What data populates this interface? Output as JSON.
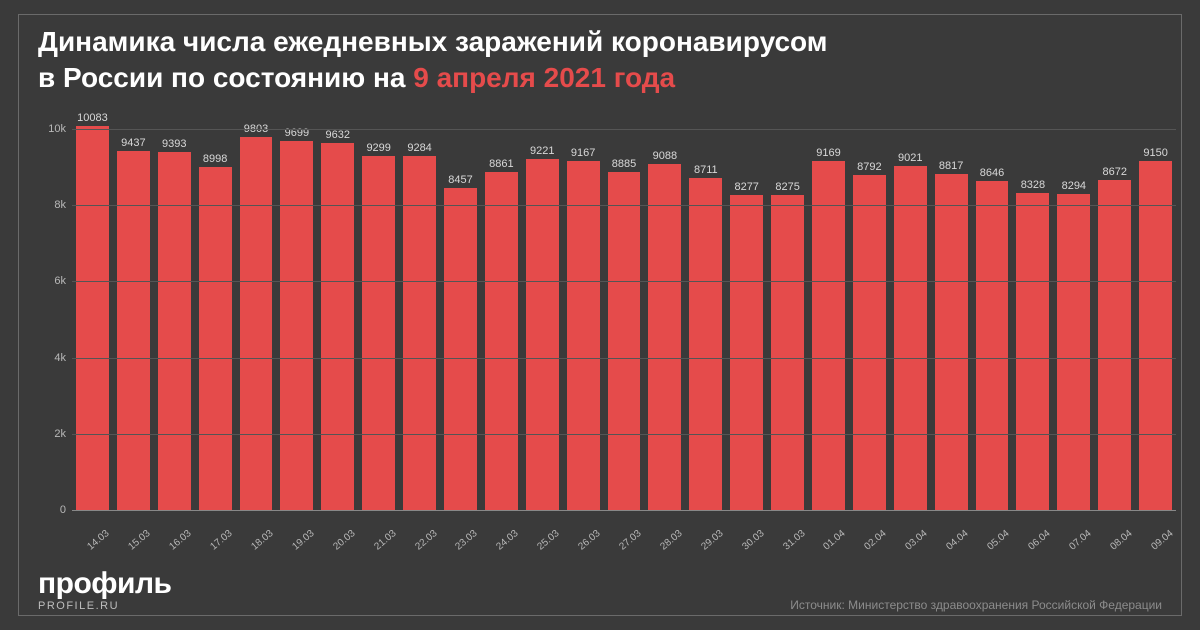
{
  "title": {
    "line1": "Динамика числа ежедневных заражений коронавирусом",
    "line2_pre": "в России по состоянию на ",
    "line2_hl": "9 апреля 2021 года"
  },
  "chart": {
    "type": "bar",
    "background_color": "#3a3a3a",
    "bar_color": "#e54b4b",
    "grid_color": "#555555",
    "baseline_color": "#888888",
    "label_color": "#b8b8b8",
    "value_label_color": "#d8d8d8",
    "yaxis": {
      "min": 0,
      "max": 10500,
      "ticks": [
        {
          "v": 0,
          "label": "0"
        },
        {
          "v": 2000,
          "label": "2k"
        },
        {
          "v": 4000,
          "label": "4k"
        },
        {
          "v": 6000,
          "label": "6k"
        },
        {
          "v": 8000,
          "label": "8k"
        },
        {
          "v": 10000,
          "label": "10k"
        }
      ]
    },
    "data": [
      {
        "x": "14.03",
        "v": 10083
      },
      {
        "x": "15.03",
        "v": 9437
      },
      {
        "x": "16.03",
        "v": 9393
      },
      {
        "x": "17.03",
        "v": 8998
      },
      {
        "x": "18.03",
        "v": 9803
      },
      {
        "x": "19.03",
        "v": 9699
      },
      {
        "x": "20.03",
        "v": 9632
      },
      {
        "x": "21.03",
        "v": 9299
      },
      {
        "x": "22.03",
        "v": 9284
      },
      {
        "x": "23.03",
        "v": 8457
      },
      {
        "x": "24.03",
        "v": 8861
      },
      {
        "x": "25.03",
        "v": 9221
      },
      {
        "x": "26.03",
        "v": 9167
      },
      {
        "x": "27.03",
        "v": 8885
      },
      {
        "x": "28.03",
        "v": 9088
      },
      {
        "x": "29.03",
        "v": 8711
      },
      {
        "x": "30.03",
        "v": 8277
      },
      {
        "x": "31.03",
        "v": 8275
      },
      {
        "x": "01.04",
        "v": 9169
      },
      {
        "x": "02.04",
        "v": 8792
      },
      {
        "x": "03.04",
        "v": 9021
      },
      {
        "x": "04.04",
        "v": 8817
      },
      {
        "x": "05.04",
        "v": 8646
      },
      {
        "x": "06.04",
        "v": 8328
      },
      {
        "x": "07.04",
        "v": 8294
      },
      {
        "x": "08.04",
        "v": 8672
      },
      {
        "x": "09.04",
        "v": 9150
      }
    ]
  },
  "footer": {
    "logo_main": "профиль",
    "logo_sub": "PROFILE.RU",
    "source": "Источник: Министерство здравоохранения Российской Федерации"
  }
}
